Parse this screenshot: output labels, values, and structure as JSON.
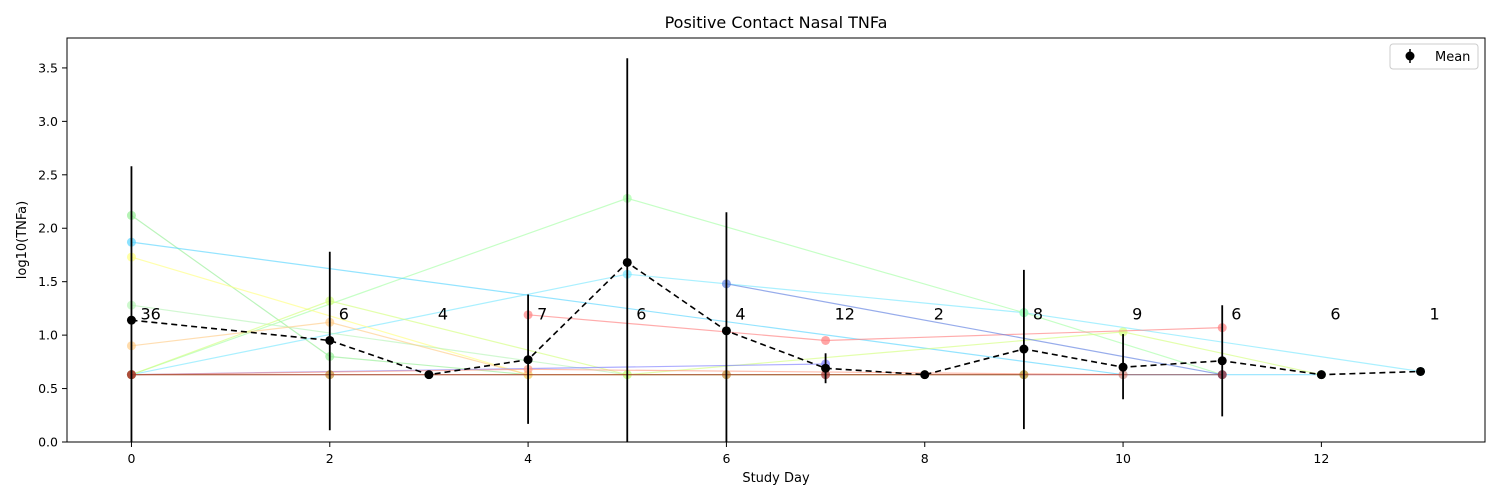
{
  "chart_data": {
    "type": "line",
    "title": "Positive Contact Nasal TNFa",
    "xlabel": "Study Day",
    "ylabel": "log10(TNFa)",
    "xlim": [
      -0.65,
      13.65
    ],
    "ylim": [
      0,
      3.78
    ],
    "xticks": [
      0,
      2,
      4,
      6,
      8,
      10,
      12
    ],
    "xtick_labels": [
      "0",
      "2",
      "4",
      "6",
      "8",
      "10",
      "12"
    ],
    "yticks": [
      0,
      0.5,
      1,
      1.5,
      2,
      2.5,
      3,
      3.5
    ],
    "ytick_labels": [
      "0.0",
      "0.5",
      "1.0",
      "1.5",
      "2.0",
      "2.5",
      "3.0",
      "3.5"
    ],
    "grid": false,
    "legend": {
      "placement": "top-right",
      "entries": [
        "Mean"
      ]
    },
    "mean_series": {
      "name": "Mean",
      "color": "#000000",
      "points": [
        {
          "x": 0,
          "y": 1.14,
          "err_low": 0.0,
          "err_high": 2.58,
          "n": "36"
        },
        {
          "x": 2,
          "y": 0.95,
          "err_low": 0.11,
          "err_high": 1.78,
          "n": "6"
        },
        {
          "x": 3,
          "y": 0.63,
          "err_low": 0.63,
          "err_high": 0.63,
          "n": "4"
        },
        {
          "x": 4,
          "y": 0.77,
          "err_low": 0.17,
          "err_high": 1.38,
          "n": "7"
        },
        {
          "x": 5,
          "y": 1.68,
          "err_low": 0.0,
          "err_high": 3.59,
          "n": "6"
        },
        {
          "x": 6,
          "y": 1.04,
          "err_low": 0.0,
          "err_high": 2.15,
          "n": "4"
        },
        {
          "x": 7,
          "y": 0.69,
          "err_low": 0.55,
          "err_high": 0.83,
          "n": "12"
        },
        {
          "x": 8,
          "y": 0.63,
          "err_low": 0.63,
          "err_high": 0.63,
          "n": "2"
        },
        {
          "x": 9,
          "y": 0.87,
          "err_low": 0.12,
          "err_high": 1.61,
          "n": "8"
        },
        {
          "x": 10,
          "y": 0.7,
          "err_low": 0.4,
          "err_high": 1.01,
          "n": "9"
        },
        {
          "x": 11,
          "y": 0.76,
          "err_low": 0.24,
          "err_high": 1.28,
          "n": "6"
        },
        {
          "x": 12,
          "y": 0.63,
          "err_low": 0.63,
          "err_high": 0.63,
          "n": "6"
        },
        {
          "x": 13,
          "y": 0.66,
          "err_low": 0.66,
          "err_high": 0.66,
          "n": "1"
        }
      ]
    },
    "subject_series": [
      {
        "color": "#7ce8ff",
        "points": [
          [
            0,
            0.63
          ],
          [
            5,
            1.57
          ],
          [
            9,
            1.21
          ],
          [
            13,
            0.66
          ]
        ]
      },
      {
        "color": "#96ee96",
        "points": [
          [
            0,
            2.12
          ],
          [
            2,
            0.8
          ],
          [
            4,
            0.63
          ]
        ]
      },
      {
        "color": "#a8ffa8",
        "points": [
          [
            0,
            0.63
          ],
          [
            5,
            2.28
          ],
          [
            9,
            1.21
          ],
          [
            11,
            0.63
          ]
        ]
      },
      {
        "color": "#5bd6ff",
        "points": [
          [
            0,
            1.87
          ],
          [
            10,
            0.63
          ],
          [
            12,
            0.63
          ]
        ]
      },
      {
        "color": "#ffff80",
        "points": [
          [
            0,
            1.73
          ],
          [
            4,
            0.63
          ],
          [
            8,
            0.63
          ]
        ]
      },
      {
        "color": "#b8f5b8",
        "points": [
          [
            0,
            1.28
          ],
          [
            5,
            0.63
          ],
          [
            9,
            0.63
          ]
        ]
      },
      {
        "color": "#ffcc88",
        "points": [
          [
            0,
            0.9
          ],
          [
            2,
            1.12
          ],
          [
            4,
            0.63
          ]
        ]
      },
      {
        "color": "#d4ff80",
        "points": [
          [
            0,
            0.63
          ],
          [
            2,
            1.32
          ],
          [
            5,
            0.63
          ],
          [
            10,
            1.03
          ],
          [
            12,
            0.63
          ]
        ]
      },
      {
        "color": "#ff8080",
        "points": [
          [
            4,
            1.19
          ],
          [
            7,
            0.95
          ],
          [
            11,
            1.07
          ]
        ]
      },
      {
        "color": "#6080e0",
        "points": [
          [
            6,
            1.48
          ],
          [
            11,
            0.63
          ]
        ]
      },
      {
        "color": "#8080ff",
        "points": [
          [
            0,
            0.63
          ],
          [
            7,
            0.73
          ]
        ]
      },
      {
        "color": "#ff9a80",
        "points": [
          [
            0,
            0.63
          ],
          [
            4,
            0.68
          ],
          [
            10,
            0.63
          ]
        ]
      },
      {
        "color": "#c08a30",
        "points": [
          [
            0,
            0.63
          ],
          [
            2,
            0.63
          ],
          [
            6,
            0.63
          ],
          [
            9,
            0.63
          ]
        ]
      },
      {
        "color": "#a03030",
        "points": [
          [
            0,
            0.63
          ],
          [
            7,
            0.63
          ],
          [
            11,
            0.63
          ]
        ]
      }
    ]
  }
}
